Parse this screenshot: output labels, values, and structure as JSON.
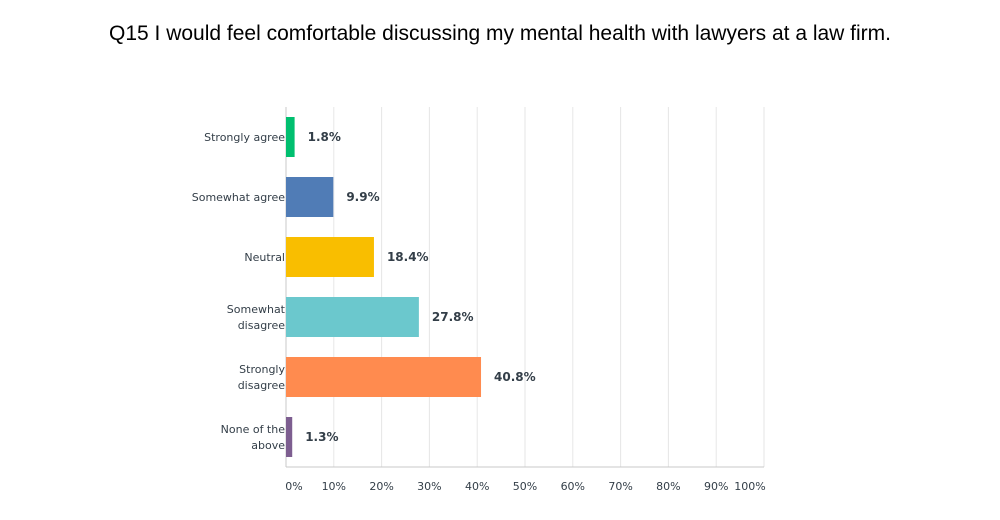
{
  "chart_data": {
    "type": "bar",
    "orientation": "horizontal",
    "title": "Q15 I would feel comfortable discussing my mental health with lawyers at a law firm.",
    "categories": [
      [
        "Strongly agree"
      ],
      [
        "Somewhat agree"
      ],
      [
        "Neutral"
      ],
      [
        "Somewhat",
        "disagree"
      ],
      [
        "Strongly",
        "disagree"
      ],
      [
        "None of the",
        "above"
      ]
    ],
    "values": [
      1.8,
      9.9,
      18.4,
      27.8,
      40.8,
      1.3
    ],
    "value_labels": [
      "1.8%",
      "9.9%",
      "18.4%",
      "27.8%",
      "40.8%",
      "1.3%"
    ],
    "colors": [
      "#00bf6f",
      "#507cb6",
      "#f9be00",
      "#6bc8cd",
      "#ff8b4f",
      "#7d5e90"
    ],
    "xlim": [
      0,
      100
    ],
    "xticks": [
      "0%",
      "10%",
      "20%",
      "30%",
      "40%",
      "50%",
      "60%",
      "70%",
      "80%",
      "90%",
      "100%"
    ],
    "grid": true,
    "xlabel": "",
    "ylabel": ""
  }
}
